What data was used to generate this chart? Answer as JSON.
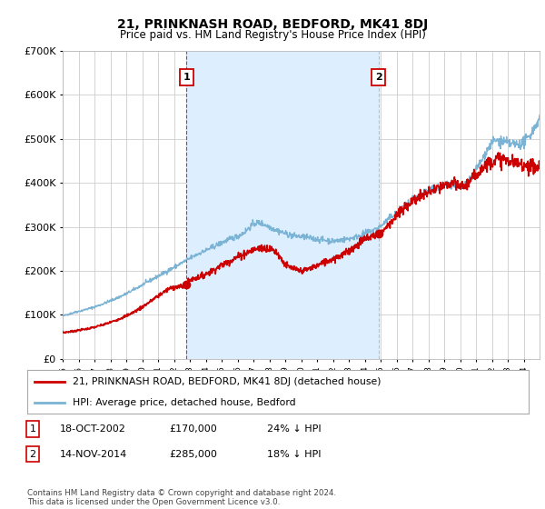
{
  "title": "21, PRINKNASH ROAD, BEDFORD, MK41 8DJ",
  "subtitle": "Price paid vs. HM Land Registry's House Price Index (HPI)",
  "ylim": [
    0,
    700000
  ],
  "xlim_start": 1995.0,
  "xlim_end": 2025.0,
  "sale1_x": 2002.79,
  "sale1_y": 170000,
  "sale1_label": "1",
  "sale2_x": 2014.87,
  "sale2_y": 285000,
  "sale2_label": "2",
  "legend_line1": "21, PRINKNASH ROAD, BEDFORD, MK41 8DJ (detached house)",
  "legend_line2": "HPI: Average price, detached house, Bedford",
  "table_row1_num": "1",
  "table_row1_date": "18-OCT-2002",
  "table_row1_price": "£170,000",
  "table_row1_hpi": "24% ↓ HPI",
  "table_row2_num": "2",
  "table_row2_date": "14-NOV-2014",
  "table_row2_price": "£285,000",
  "table_row2_hpi": "18% ↓ HPI",
  "footnote": "Contains HM Land Registry data © Crown copyright and database right 2024.\nThis data is licensed under the Open Government Licence v3.0.",
  "line_color_red": "#cc0000",
  "line_color_blue": "#7ab3d4",
  "shade_color": "#ddeeff",
  "vline_color_dashed": "#cc0000",
  "vline_color_solid": "#9ab8cc",
  "bg_color": "#ffffff",
  "grid_color": "#cccccc"
}
